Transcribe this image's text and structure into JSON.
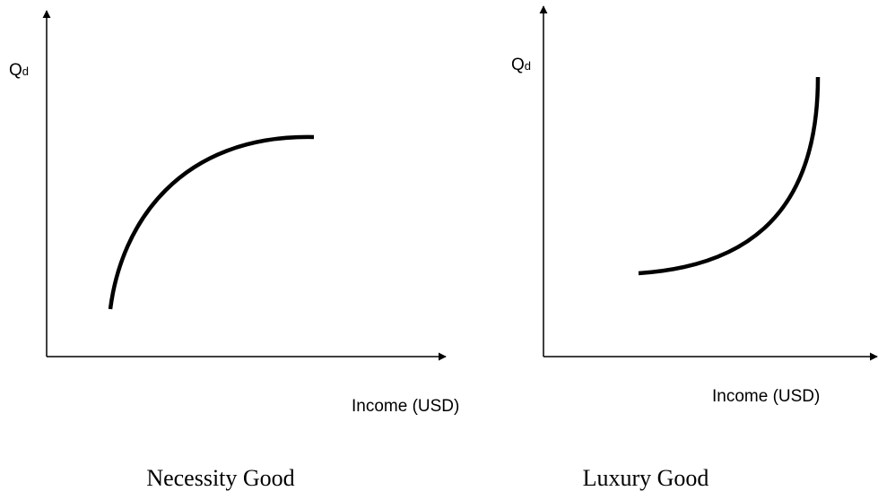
{
  "graphs": [
    {
      "y_label": {
        "main": "Q",
        "sub": "d"
      },
      "x_label": "Income (USD)",
      "caption": "Necessity Good"
    },
    {
      "y_label": {
        "main": "Q",
        "sub": "d"
      },
      "x_label": "Income (USD)",
      "caption": "Luxury Good"
    }
  ]
}
